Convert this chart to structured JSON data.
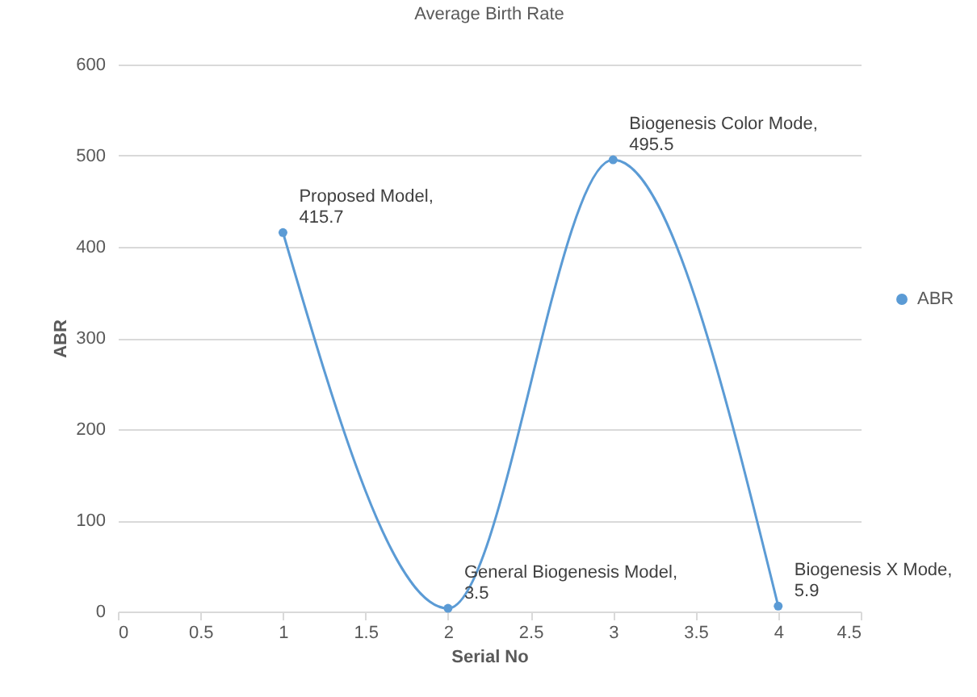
{
  "chart_data": {
    "type": "line",
    "title": "Average Birth Rate",
    "xlabel": "Serial No",
    "ylabel": "ABR",
    "x": [
      1,
      2,
      3,
      4
    ],
    "series": [
      {
        "name": "ABR",
        "color": "#5b9bd5",
        "values": [
          415.7,
          3.5,
          495.5,
          5.9
        ],
        "value_labels": [
          "Proposed Model, 415.7",
          "General Biogenesis Model, 3.5",
          "Biogenesis Color Mode, 495.5",
          "Biogenesis X Mode, 5.9"
        ]
      }
    ],
    "xlim": [
      0,
      4.5
    ],
    "xticks": [
      0,
      0.5,
      1,
      1.5,
      2,
      2.5,
      3,
      3.5,
      4,
      4.5
    ],
    "ylim": [
      0,
      600
    ],
    "yticks": [
      0,
      100,
      200,
      300,
      400,
      500,
      600
    ],
    "grid": "y",
    "legend": "right",
    "marker": "circle",
    "line_style": "solid"
  }
}
